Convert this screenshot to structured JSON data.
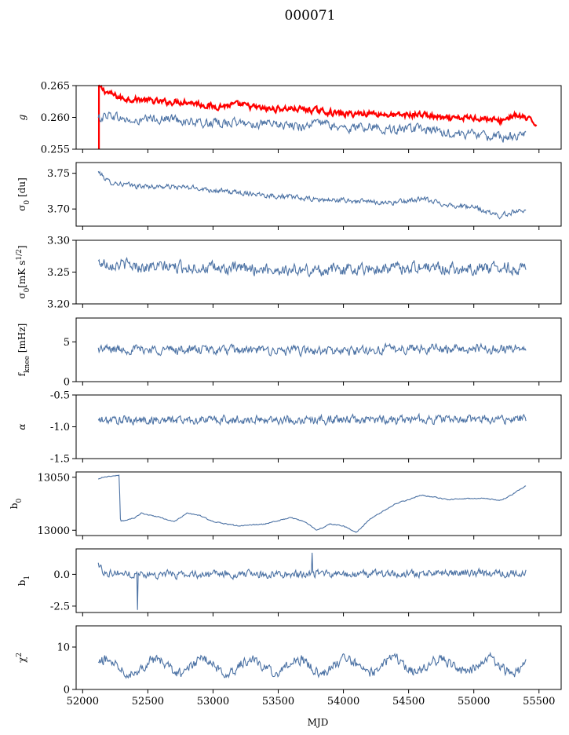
{
  "figure": {
    "suptitle": "000071",
    "xlabel": "MJD"
  },
  "colors": {
    "series": "#4c72a4",
    "gain_fit": "#ff0000",
    "background": "#ffffff"
  },
  "chart_data": [
    {
      "type": "line",
      "ylabel": "g",
      "xlim": [
        51950,
        55670
      ],
      "ylim": [
        0.255,
        0.265
      ],
      "yticks": [
        "0.255",
        "0.260",
        "0.265"
      ],
      "series": [
        {
          "color": "#ff0000",
          "x_range": [
            52120,
            55480
          ],
          "noise": 0.0004,
          "points": [
            [
              52120,
              0.2648
            ],
            [
              52200,
              0.2638
            ],
            [
              52300,
              0.263
            ],
            [
              52450,
              0.2628
            ],
            [
              52600,
              0.2624
            ],
            [
              52800,
              0.2625
            ],
            [
              53000,
              0.2617
            ],
            [
              53200,
              0.262
            ],
            [
              53400,
              0.2613
            ],
            [
              53600,
              0.2614
            ],
            [
              53800,
              0.2611
            ],
            [
              54000,
              0.2605
            ],
            [
              54200,
              0.2607
            ],
            [
              54400,
              0.2603
            ],
            [
              54600,
              0.2605
            ],
            [
              54800,
              0.2597
            ],
            [
              55000,
              0.26
            ],
            [
              55100,
              0.2598
            ],
            [
              55200,
              0.2594
            ],
            [
              55300,
              0.2603
            ],
            [
              55380,
              0.26
            ],
            [
              55480,
              0.259
            ]
          ]
        },
        {
          "color": "#4c72a4",
          "x_range": [
            52120,
            55400
          ],
          "noise": 0.0006,
          "points": [
            [
              52120,
              0.2598
            ],
            [
              52200,
              0.2605
            ],
            [
              52300,
              0.2598
            ],
            [
              52400,
              0.2592
            ],
            [
              52500,
              0.2597
            ],
            [
              52700,
              0.2598
            ],
            [
              52900,
              0.259
            ],
            [
              53100,
              0.2592
            ],
            [
              53300,
              0.259
            ],
            [
              53500,
              0.2588
            ],
            [
              53700,
              0.2586
            ],
            [
              53800,
              0.2593
            ],
            [
              54000,
              0.2582
            ],
            [
              54200,
              0.2586
            ],
            [
              54400,
              0.258
            ],
            [
              54600,
              0.2582
            ],
            [
              54800,
              0.2575
            ],
            [
              55000,
              0.2574
            ],
            [
              55200,
              0.2568
            ],
            [
              55400,
              0.2572
            ]
          ]
        }
      ]
    },
    {
      "type": "line",
      "ylabel": "σ0 [du]",
      "xlim": [
        51950,
        55670
      ],
      "ylim": [
        3.676,
        3.765
      ],
      "yticks": [
        "3.70",
        "3.75"
      ],
      "series": [
        {
          "color": "#4c72a4",
          "x_range": [
            52120,
            55400
          ],
          "noise": 0.003,
          "points": [
            [
              52120,
              3.752
            ],
            [
              52200,
              3.738
            ],
            [
              52400,
              3.732
            ],
            [
              52700,
              3.731
            ],
            [
              52900,
              3.729
            ],
            [
              53100,
              3.724
            ],
            [
              53300,
              3.722
            ],
            [
              53500,
              3.718
            ],
            [
              53800,
              3.713
            ],
            [
              54000,
              3.712
            ],
            [
              54200,
              3.71
            ],
            [
              54400,
              3.709
            ],
            [
              54600,
              3.714
            ],
            [
              54800,
              3.706
            ],
            [
              55000,
              3.702
            ],
            [
              55200,
              3.69
            ],
            [
              55300,
              3.696
            ],
            [
              55400,
              3.7
            ]
          ]
        }
      ]
    },
    {
      "type": "line",
      "ylabel": "σ0[mK s^1/2]",
      "xlim": [
        51950,
        55670
      ],
      "ylim": [
        3.2,
        3.3
      ],
      "yticks": [
        "3.20",
        "3.25",
        "3.30"
      ],
      "series": [
        {
          "color": "#4c72a4",
          "x_range": [
            52120,
            55400
          ],
          "noise": 0.008,
          "points": [
            [
              52120,
              3.265
            ],
            [
              52300,
              3.262
            ],
            [
              52500,
              3.258
            ],
            [
              52800,
              3.258
            ],
            [
              53100,
              3.255
            ],
            [
              53400,
              3.255
            ],
            [
              53700,
              3.252
            ],
            [
              54000,
              3.255
            ],
            [
              54300,
              3.256
            ],
            [
              54600,
              3.258
            ],
            [
              54900,
              3.255
            ],
            [
              55200,
              3.258
            ],
            [
              55400,
              3.255
            ]
          ]
        }
      ]
    },
    {
      "type": "line",
      "ylabel": "f_knee [mHz]",
      "xlim": [
        51950,
        55670
      ],
      "ylim": [
        0,
        8
      ],
      "yticks": [
        "0",
        "5"
      ],
      "series": [
        {
          "color": "#4c72a4",
          "x_range": [
            52120,
            55400
          ],
          "noise": 0.5,
          "points": [
            [
              52120,
              4.1
            ],
            [
              52800,
              4.0
            ],
            [
              53500,
              3.9
            ],
            [
              54000,
              3.8
            ],
            [
              54500,
              4.2
            ],
            [
              55000,
              4.1
            ],
            [
              55400,
              4.2
            ]
          ]
        }
      ]
    },
    {
      "type": "line",
      "ylabel": "α",
      "xlim": [
        51950,
        55670
      ],
      "ylim": [
        -1.5,
        -0.5
      ],
      "yticks": [
        "-1.5",
        "-1.0",
        "-0.5"
      ],
      "series": [
        {
          "color": "#4c72a4",
          "x_range": [
            52120,
            55400
          ],
          "noise": 0.06,
          "points": [
            [
              52120,
              -0.9
            ],
            [
              53000,
              -0.89
            ],
            [
              54000,
              -0.89
            ],
            [
              55000,
              -0.88
            ],
            [
              55400,
              -0.88
            ]
          ]
        }
      ]
    },
    {
      "type": "line",
      "ylabel": "b0",
      "xlim": [
        51950,
        55670
      ],
      "ylim": [
        12995,
        13055
      ],
      "yticks": [
        "13000",
        "13050"
      ],
      "series": [
        {
          "color": "#4c72a4",
          "x_range": [
            52120,
            55400
          ],
          "noise": 0.4,
          "points": [
            [
              52120,
              13048
            ],
            [
              52150,
              13050
            ],
            [
              52280,
              13052
            ],
            [
              52290,
              13008
            ],
            [
              52400,
              13012
            ],
            [
              52450,
              13016
            ],
            [
              52600,
              13012
            ],
            [
              52700,
              13008
            ],
            [
              52800,
              13016
            ],
            [
              52900,
              13014
            ],
            [
              53000,
              13008
            ],
            [
              53200,
              13004
            ],
            [
              53400,
              13006
            ],
            [
              53600,
              13012
            ],
            [
              53700,
              13008
            ],
            [
              53800,
              13000
            ],
            [
              53900,
              13006
            ],
            [
              54000,
              13004
            ],
            [
              54100,
              12998
            ],
            [
              54200,
              13010
            ],
            [
              54400,
              13025
            ],
            [
              54600,
              13033
            ],
            [
              54800,
              13029
            ],
            [
              55000,
              13030
            ],
            [
              55100,
              13030
            ],
            [
              55200,
              13028
            ],
            [
              55300,
              13034
            ],
            [
              55400,
              13042
            ]
          ]
        }
      ]
    },
    {
      "type": "line",
      "ylabel": "b1",
      "xlim": [
        51950,
        55670
      ],
      "ylim": [
        -3.0,
        2.0
      ],
      "yticks": [
        "-2.5",
        "0.0"
      ],
      "series": [
        {
          "color": "#4c72a4",
          "x_range": [
            52120,
            55400
          ],
          "noise": 0.25,
          "points": [
            [
              52120,
              0.8
            ],
            [
              52160,
              0.2
            ],
            [
              52400,
              0.0
            ],
            [
              53000,
              0.0
            ],
            [
              54000,
              0.0
            ],
            [
              55000,
              0.1
            ],
            [
              55400,
              0.1
            ]
          ]
        }
      ]
    },
    {
      "type": "line",
      "ylabel": "χ2",
      "xlim": [
        51950,
        55670
      ],
      "ylim": [
        0,
        15
      ],
      "yticks": [
        "0",
        "10"
      ],
      "xticks": [
        "52000",
        "52500",
        "53000",
        "53500",
        "54000",
        "54500",
        "55000",
        "55500"
      ],
      "series": [
        {
          "color": "#4c72a4",
          "x_range": [
            52120,
            55400
          ],
          "noise": 1.0,
          "period": 365,
          "amplitude": 1.6,
          "points": [
            [
              52120,
              5.5
            ],
            [
              53000,
              5.5
            ],
            [
              54000,
              5.6
            ],
            [
              55000,
              5.7
            ],
            [
              55400,
              5.6
            ]
          ]
        }
      ]
    }
  ]
}
